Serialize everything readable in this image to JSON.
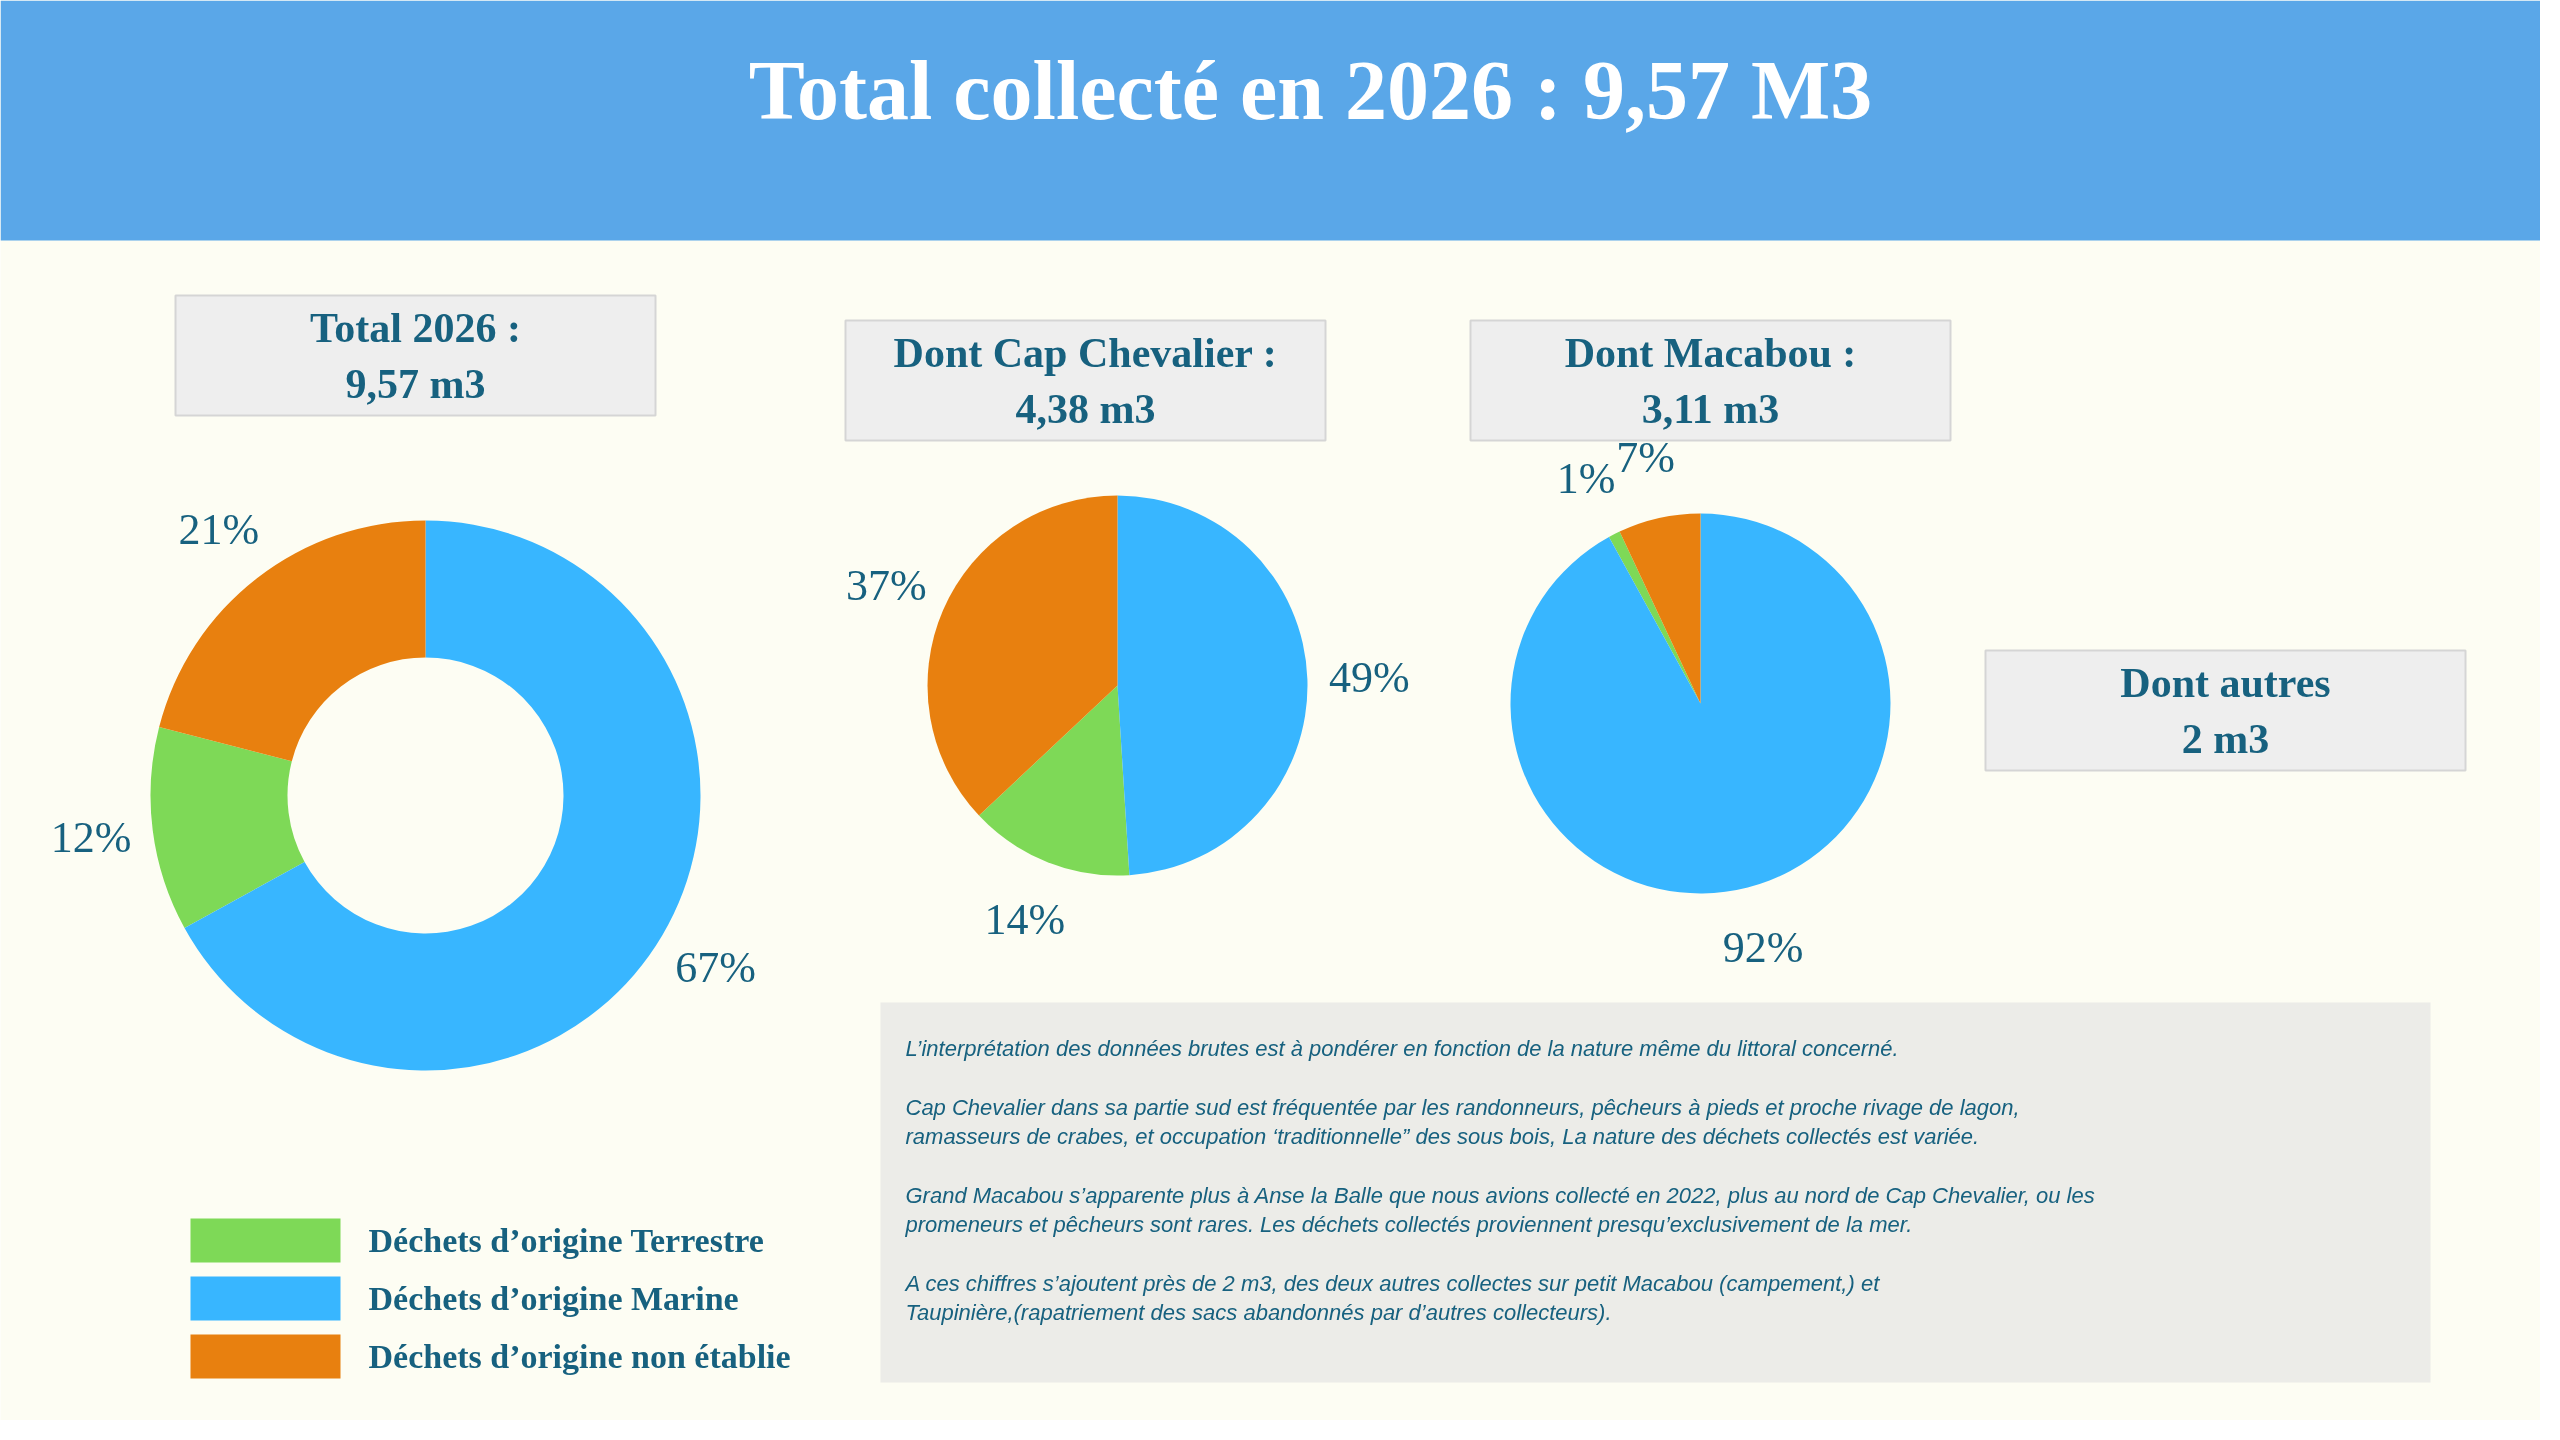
{
  "chart_data": [
    {
      "type": "donut",
      "title": "Total collecté en 2026 : 9,57 M3",
      "subtitle": "Total 2026 :\n9,57 m3",
      "categories": [
        "Déchets d’origine Terrestre",
        "Déchets d’origine Marine",
        "Déchets d’origine non établie"
      ],
      "values": [
        12,
        67,
        21
      ],
      "value_labels": [
        "12%",
        "67%",
        "21%"
      ],
      "colors": [
        "#7ed957",
        "#38b6ff",
        "#e8800f"
      ],
      "legend": "bottom"
    },
    {
      "type": "pie",
      "title": "Dont Cap Chevalier :\n4,38 m3",
      "categories": [
        null,
        null,
        null
      ],
      "values": [
        14,
        49,
        37
      ],
      "value_labels": [
        "14%",
        "49%",
        "37%"
      ],
      "colors": [
        "#7ed957",
        "#38b6ff",
        "#e8800f"
      ]
    },
    {
      "type": "pie",
      "title": "Dont Macabou :\n3,11 m3",
      "categories": [
        null,
        null,
        null
      ],
      "values": [
        1,
        92,
        7
      ],
      "value_labels": [
        "1%",
        "92%",
        "7%"
      ],
      "colors": [
        "#7ed957",
        "#38b6ff",
        "#e8800f"
      ]
    },
    {
      "type": "other",
      "title": "Dont autres\n2 m3",
      "annotations": [
        "L’interprétation des données brutes est à pondérer en fonction de la nature même du littoral concerné.",
        "Cap Chevalier dans sa partie sud est fréquentée par les randonneurs, pêcheurs à pieds et proche rivage de lagon, ramasseurs de crabes, et occupation ‘traditionnelle” des sous bois, La nature des déchets collectés est variée.",
        "Grand Macabou s’apparente plus à Anse la Balle que nous avions collecté en 2022, plus au nord de Cap Chevalier, ou les promeneurs et pêcheurs sont rares. Les déchets collectés proviennent presqu’exclusivement de la mer.",
        "A ces chiffres s’ajoutent près de 2 m3, des deux autres collectes sur petit Macabou (campement,) et Taupinière,(rapatriement des sacs abandonnés par d’autres collecteurs)."
      ]
    }
  ]
}
